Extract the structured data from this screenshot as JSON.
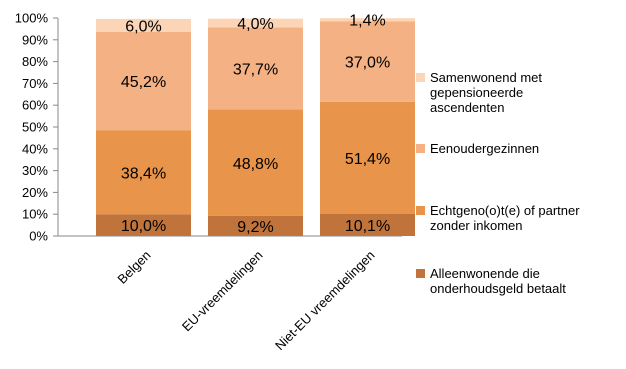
{
  "chart_data": {
    "type": "bar",
    "stacked": true,
    "percent": true,
    "categories": [
      "Belgen",
      "EU-vreemdelingen",
      "Niet-EU vreemdelingen"
    ],
    "series": [
      {
        "name": "Alleenwonende die onderhoudsgeld betaalt",
        "values": [
          10.0,
          9.2,
          10.1
        ],
        "labels": [
          "10,0%",
          "9,2%",
          "10,1%"
        ],
        "color": "#c0733a"
      },
      {
        "name": "Echtgeno(o)t(e) of partner zonder inkomen",
        "values": [
          38.4,
          48.8,
          51.4
        ],
        "labels": [
          "38,4%",
          "48,8%",
          "51,4%"
        ],
        "color": "#e8944a"
      },
      {
        "name": "Eenoudergezinnen",
        "values": [
          45.2,
          37.7,
          37.0
        ],
        "labels": [
          "45,2%",
          "37,7%",
          "37,0%"
        ],
        "color": "#f4b183"
      },
      {
        "name": "Samenwonend met gepensioneerde ascendenten",
        "values": [
          6.0,
          4.0,
          1.4
        ],
        "labels": [
          "6,0%",
          "4,0%",
          "1,4%"
        ],
        "color": "#fbd5b5"
      }
    ],
    "yticks": [
      "0%",
      "10%",
      "20%",
      "30%",
      "40%",
      "50%",
      "60%",
      "70%",
      "80%",
      "90%",
      "100%"
    ],
    "ylim": [
      0,
      100
    ],
    "legend_position": "right",
    "legend": [
      {
        "series": 3,
        "lines": [
          "Samenwonend met",
          "gepensioneerde",
          "ascendenten"
        ]
      },
      {
        "series": 2,
        "lines": [
          "Eenoudergezinnen"
        ]
      },
      {
        "series": 1,
        "lines": [
          "Echtgeno(o)t(e) of partner",
          "zonder inkomen"
        ]
      },
      {
        "series": 0,
        "lines": [
          "Alleenwonende die",
          "onderhoudsgeld betaalt"
        ]
      }
    ]
  }
}
